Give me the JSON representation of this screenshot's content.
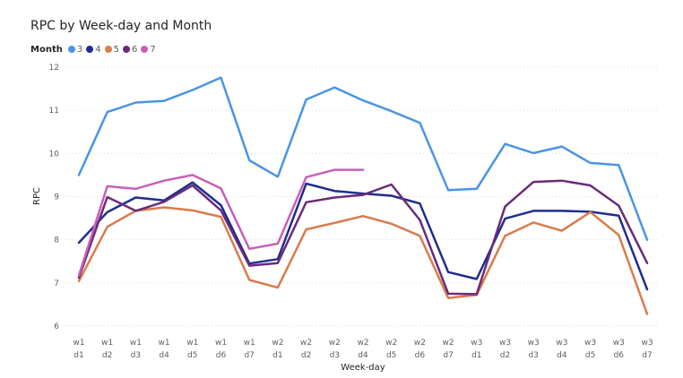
{
  "chart_data": {
    "type": "line",
    "title": "RPC by Week-day and Month",
    "xlabel": "Week-day",
    "ylabel": "RPC",
    "ylim": [
      6,
      12
    ],
    "yticks": [
      6,
      7,
      8,
      9,
      10,
      11,
      12
    ],
    "grid": "horizontal dotted",
    "legend": {
      "title": "Month",
      "placement": "top-left"
    },
    "categories": [
      [
        "w1",
        "d1"
      ],
      [
        "w1",
        "d2"
      ],
      [
        "w1",
        "d3"
      ],
      [
        "w1",
        "d4"
      ],
      [
        "w1",
        "d5"
      ],
      [
        "w1",
        "d6"
      ],
      [
        "w1",
        "d7"
      ],
      [
        "w2",
        "d1"
      ],
      [
        "w2",
        "d2"
      ],
      [
        "w2",
        "d3"
      ],
      [
        "w2",
        "d4"
      ],
      [
        "w2",
        "d5"
      ],
      [
        "w2",
        "d6"
      ],
      [
        "w2",
        "d7"
      ],
      [
        "w3",
        "d1"
      ],
      [
        "w3",
        "d2"
      ],
      [
        "w3",
        "d3"
      ],
      [
        "w3",
        "d4"
      ],
      [
        "w3",
        "d5"
      ],
      [
        "w3",
        "d6"
      ],
      [
        "w3",
        "d7"
      ]
    ],
    "series": [
      {
        "name": "3",
        "color": "#4a94e6",
        "values": [
          9.5,
          10.96,
          11.18,
          11.22,
          11.47,
          11.76,
          9.84,
          9.46,
          11.25,
          11.53,
          11.23,
          10.98,
          10.71,
          9.15,
          9.18,
          10.22,
          10.01,
          10.16,
          9.78,
          9.73,
          8.0
        ]
      },
      {
        "name": "4",
        "color": "#1f2e8c",
        "values": [
          7.93,
          8.64,
          8.98,
          8.91,
          9.33,
          8.8,
          7.45,
          7.55,
          9.3,
          9.13,
          9.07,
          9.02,
          8.84,
          7.25,
          7.09,
          8.49,
          8.67,
          8.67,
          8.65,
          8.56,
          6.85
        ]
      },
      {
        "name": "5",
        "color": "#d97b4d",
        "values": [
          7.04,
          8.3,
          8.67,
          8.75,
          8.68,
          8.53,
          7.07,
          6.89,
          8.24,
          8.39,
          8.55,
          8.37,
          8.09,
          6.65,
          6.72,
          8.09,
          8.4,
          8.21,
          8.64,
          8.11,
          6.28
        ]
      },
      {
        "name": "6",
        "color": "#6b2a7a",
        "values": [
          7.12,
          8.99,
          8.67,
          8.88,
          9.26,
          8.68,
          7.4,
          7.46,
          8.87,
          8.98,
          9.04,
          9.28,
          8.46,
          6.75,
          6.74,
          8.77,
          9.34,
          9.37,
          9.26,
          8.79,
          7.46
        ]
      },
      {
        "name": "7",
        "color": "#c95fb6",
        "values": [
          7.17,
          9.24,
          9.18,
          9.37,
          9.5,
          9.19,
          7.79,
          7.91,
          9.45,
          9.62,
          9.62,
          null,
          null,
          null,
          null,
          null,
          null,
          null,
          null,
          null,
          null
        ]
      }
    ]
  }
}
